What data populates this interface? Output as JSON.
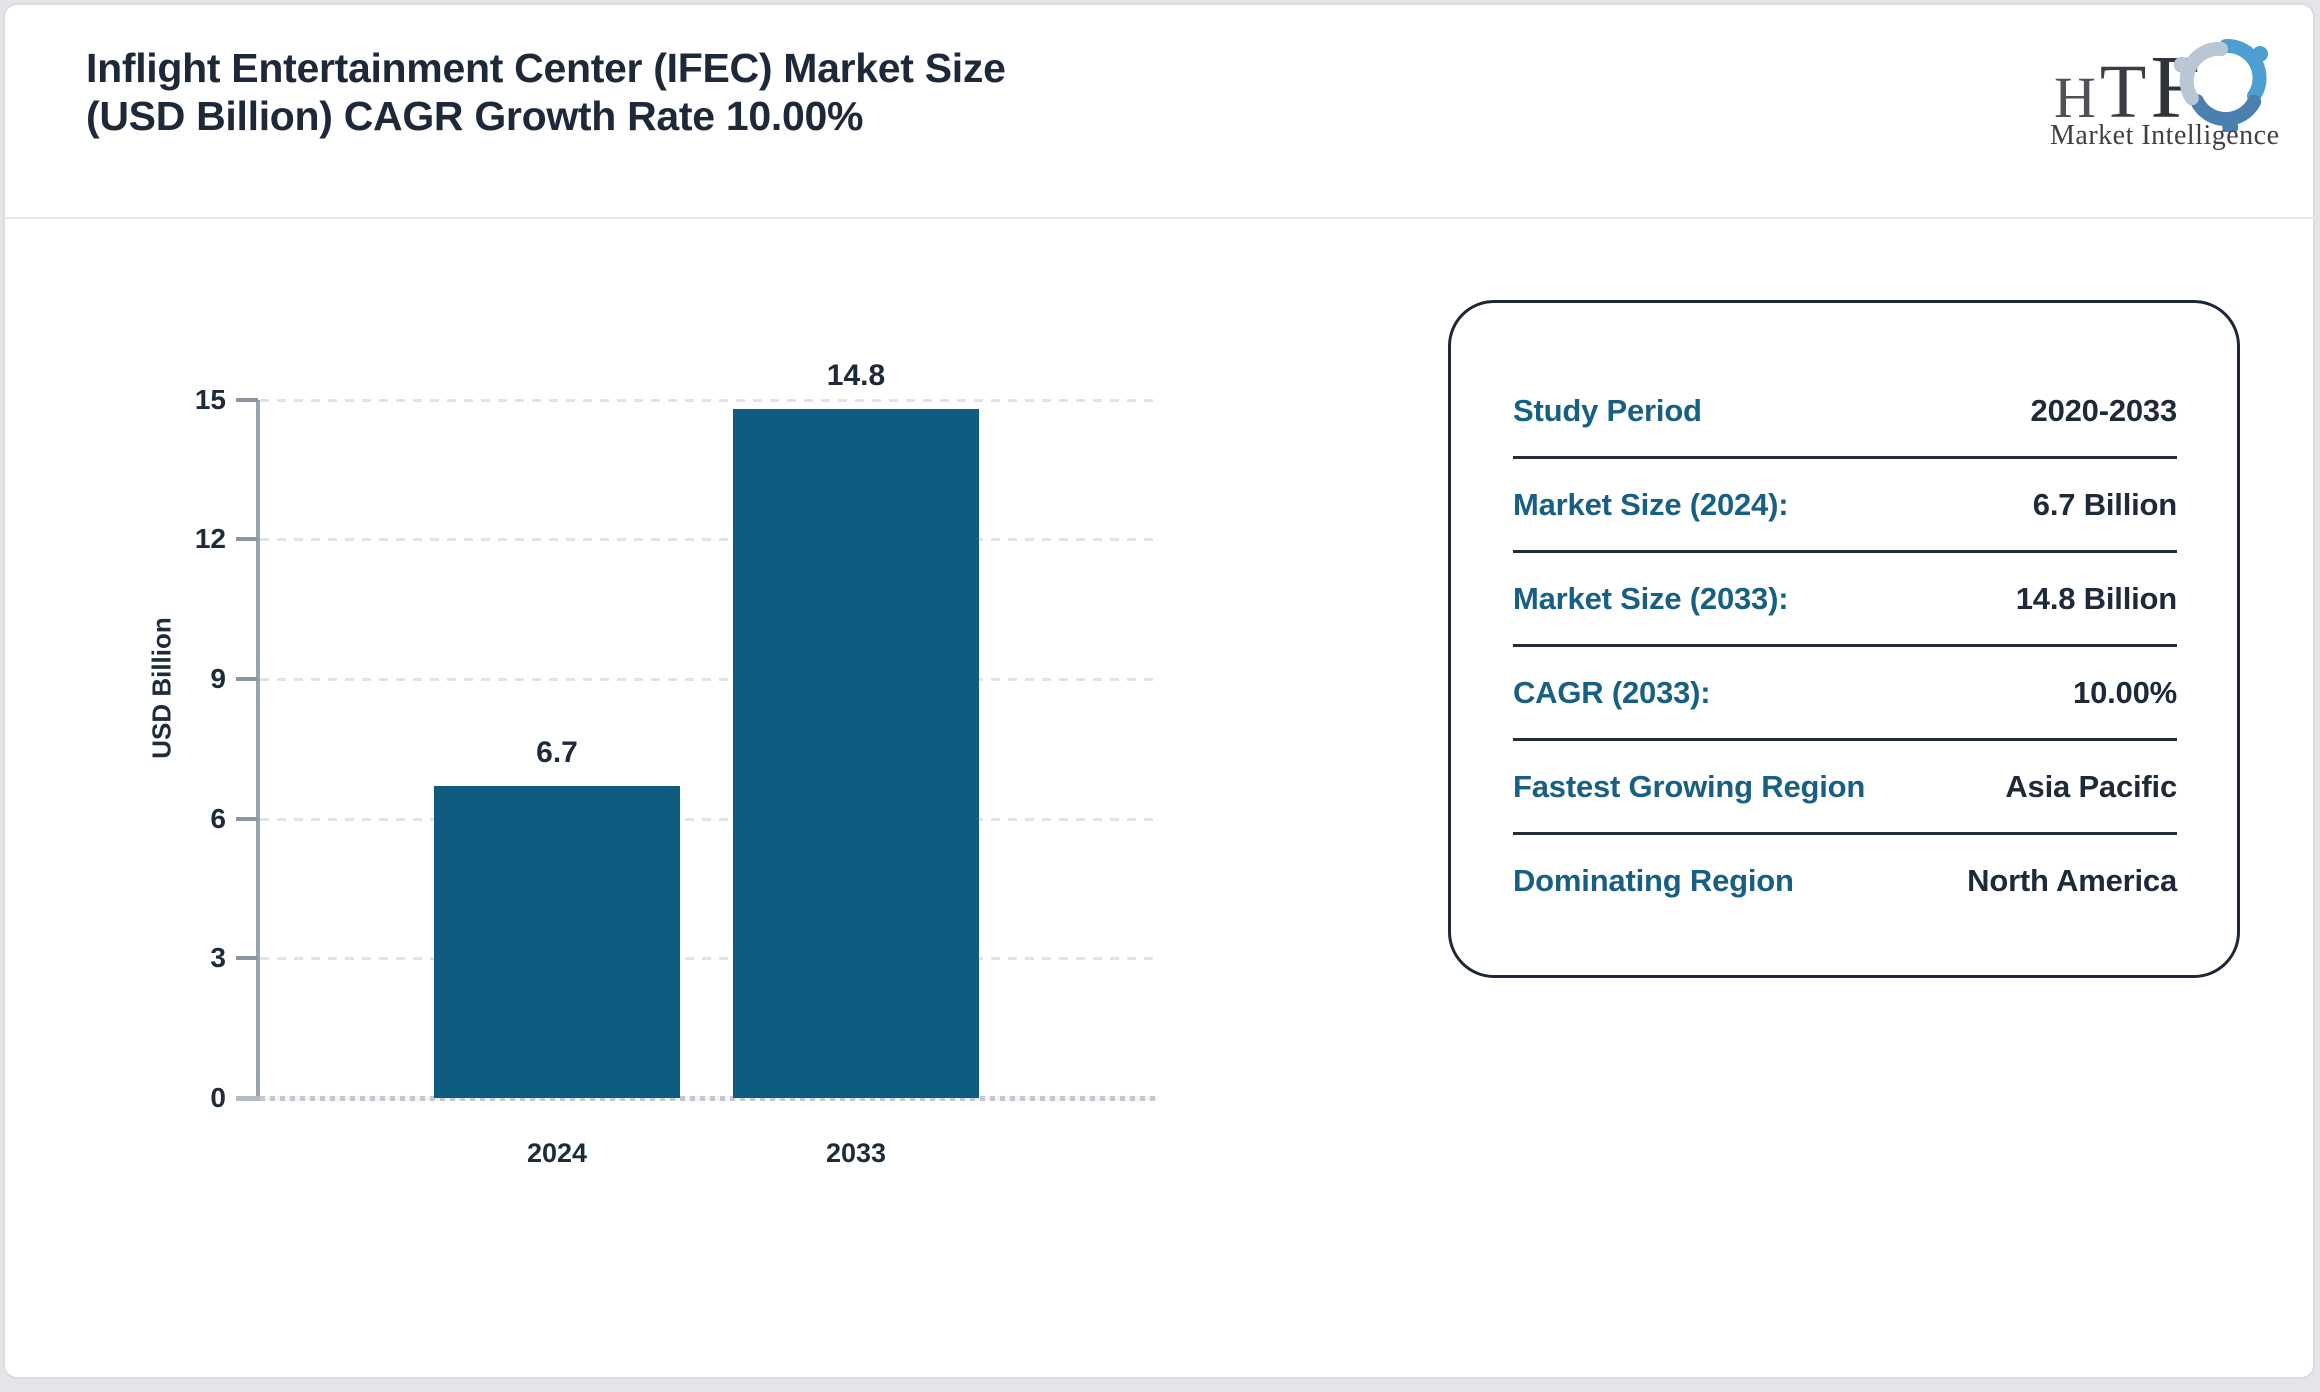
{
  "header": {
    "title_line1": "Inflight Entertainment Center (IFEC) Market Size",
    "title_line2": "(USD Billion) CAGR Growth Rate 10.00%",
    "logo": {
      "letters": [
        "H",
        "T",
        "F"
      ],
      "subtext": "Market Intelligence",
      "icon": "people-swirl-icon",
      "figure_colors": {
        "top": "#4e9fd1",
        "right": "#4a7fb0",
        "left": "#b9c6d4"
      }
    }
  },
  "chart_data": {
    "type": "bar",
    "title": "Inflight Entertainment Center (IFEC) Market Size (USD Billion) CAGR Growth Rate 10.00%",
    "categories": [
      "2024",
      "2033"
    ],
    "values": [
      6.7,
      14.8
    ],
    "value_labels": [
      "6.7",
      "14.8"
    ],
    "xlabel": "",
    "ylabel": "USD Billion",
    "ylim": [
      0,
      15
    ],
    "yticks": [
      0,
      3,
      6,
      9,
      12,
      15
    ],
    "grid": "dashed-horizontal",
    "legend_position": "none",
    "bar_color": "#0e5c80"
  },
  "panel": {
    "rows": [
      {
        "label": "Study Period",
        "value": "2020-2033"
      },
      {
        "label": "Market Size (2024):",
        "value": "6.7 Billion"
      },
      {
        "label": "Market Size (2033):",
        "value": "14.8 Billion"
      },
      {
        "label": "CAGR (2033):",
        "value": "10.00%"
      },
      {
        "label": "Fastest Growing Region",
        "value": "Asia Pacific"
      },
      {
        "label": "Dominating Region",
        "value": "North America"
      }
    ]
  },
  "colors": {
    "accent_teal": "#176083",
    "navy_text": "#1e2a3a",
    "bar": "#0e5c80",
    "axis": "#9aa2ae",
    "grid": "#e2e3e6",
    "panel_border": "#1d2737",
    "card_border": "#d9dce1",
    "page_bg": "#e3e5e9"
  }
}
